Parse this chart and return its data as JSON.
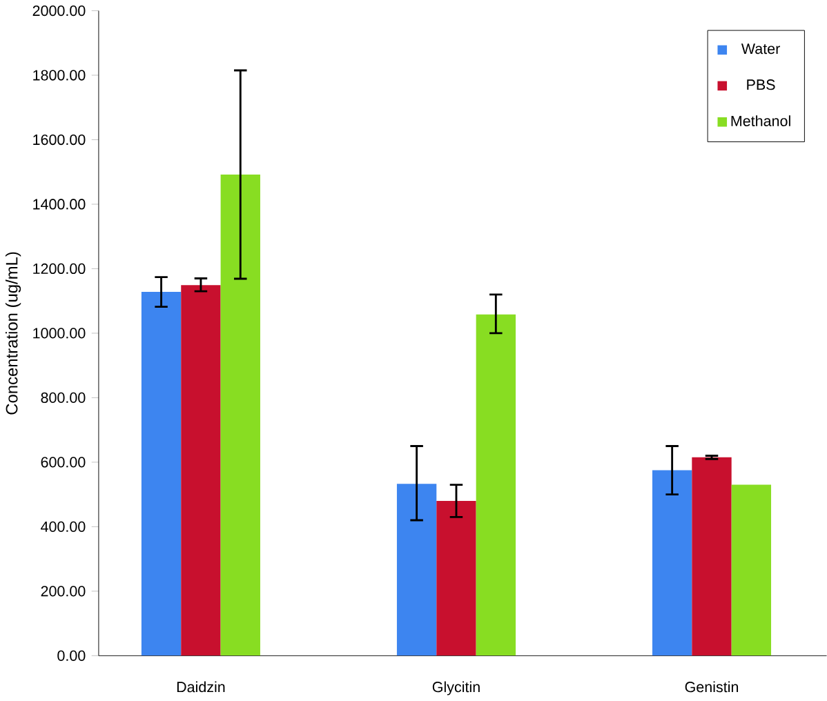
{
  "chart_data": {
    "type": "bar",
    "ylabel": "Concentration  (ug/mL)",
    "categories": [
      "Daidzin",
      "Glycitin",
      "Genistin"
    ],
    "series": [
      {
        "name": "Water",
        "color": "#3d85f0",
        "values": [
          1128,
          533,
          575
        ],
        "errors": [
          [
            1082,
            1174
          ],
          [
            420,
            650
          ],
          [
            500,
            650
          ]
        ]
      },
      {
        "name": "PBS",
        "color": "#c8102e",
        "values": [
          1149,
          480,
          615
        ],
        "errors": [
          [
            1130,
            1170
          ],
          [
            430,
            530
          ],
          [
            610,
            620
          ]
        ]
      },
      {
        "name": "Methanol",
        "color": "#88dd22",
        "values": [
          1492,
          1058,
          530
        ],
        "errors": [
          [
            1169,
            1815
          ],
          [
            1000,
            1120
          ],
          null
        ]
      }
    ],
    "ylim": [
      0,
      2000
    ],
    "yticks": [
      {
        "value": 0,
        "label": "0.00"
      },
      {
        "value": 200,
        "label": "200.00"
      },
      {
        "value": 400,
        "label": "400.00"
      },
      {
        "value": 600,
        "label": "600.00"
      },
      {
        "value": 800,
        "label": "800.00"
      },
      {
        "value": 1000,
        "label": "1000.00"
      },
      {
        "value": 1200,
        "label": "1200.00"
      },
      {
        "value": 1400,
        "label": "1400.00"
      },
      {
        "value": 1600,
        "label": "1600.00"
      },
      {
        "value": 1800,
        "label": "1800.00"
      },
      {
        "value": 2000,
        "label": "2000.00"
      }
    ],
    "grid": false,
    "legend": "top right"
  }
}
